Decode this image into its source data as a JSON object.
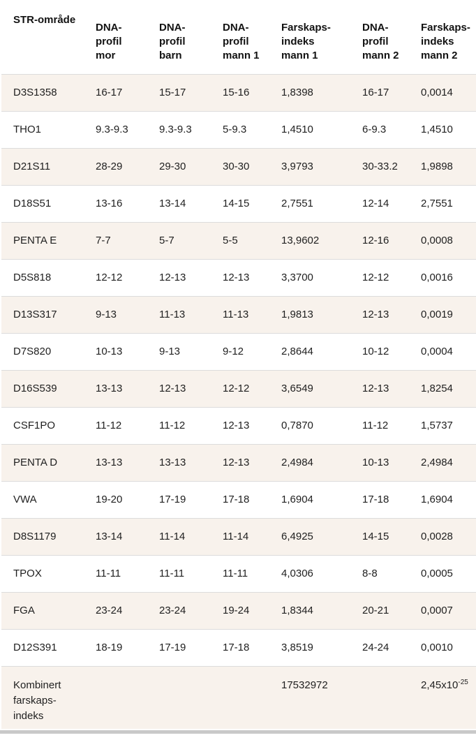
{
  "table": {
    "header_display": [
      "STR-område",
      "DNA-\nprofil\nmor",
      "DNA-\nprofil\nbarn",
      "DNA-\nprofil\nmann 1",
      "Farskaps-\nindeks\nmann 1",
      "DNA-\nprofil\nmann 2",
      "Farskaps-\nindeks\nmann 2"
    ],
    "footer": {
      "label": "Kombinert\nfarskaps-\nindeks",
      "fi_mann1": "17532972",
      "fi_mann2_mantissa": "2,45x10",
      "fi_mann2_exponent": "-25"
    }
  },
  "chart_data": {
    "type": "table",
    "title": "",
    "columns": [
      "STR-område",
      "DNA-profil mor",
      "DNA-profil barn",
      "DNA-profil mann 1",
      "Farskaps-indeks mann 1",
      "DNA-profil mann 2",
      "Farskaps-indeks mann 2"
    ],
    "rows": [
      [
        "D3S1358",
        "16-17",
        "15-17",
        "15-16",
        "1,8398",
        "16-17",
        "0,0014"
      ],
      [
        "THO1",
        "9.3-9.3",
        "9.3-9.3",
        "5-9.3",
        "1,4510",
        "6-9.3",
        "1,4510"
      ],
      [
        "D21S11",
        "28-29",
        "29-30",
        "30-30",
        "3,9793",
        "30-33.2",
        "1,9898"
      ],
      [
        "D18S51",
        "13-16",
        "13-14",
        "14-15",
        "2,7551",
        "12-14",
        "2,7551"
      ],
      [
        "PENTA E",
        "7-7",
        "5-7",
        "5-5",
        "13,9602",
        "12-16",
        "0,0008"
      ],
      [
        "D5S818",
        "12-12",
        "12-13",
        "12-13",
        "3,3700",
        "12-12",
        "0,0016"
      ],
      [
        "D13S317",
        "9-13",
        "11-13",
        "11-13",
        "1,9813",
        "12-13",
        "0,0019"
      ],
      [
        "D7S820",
        "10-13",
        "9-13",
        "9-12",
        "2,8644",
        "10-12",
        "0,0004"
      ],
      [
        "D16S539",
        "13-13",
        "12-13",
        "12-12",
        "3,6549",
        "12-13",
        "1,8254"
      ],
      [
        "CSF1PO",
        "11-12",
        "11-12",
        "12-13",
        "0,7870",
        "11-12",
        "1,5737"
      ],
      [
        "PENTA D",
        "13-13",
        "13-13",
        "12-13",
        "2,4984",
        "10-13",
        "2,4984"
      ],
      [
        "VWA",
        "19-20",
        "17-19",
        "17-18",
        "1,6904",
        "17-18",
        "1,6904"
      ],
      [
        "D8S1179",
        "13-14",
        "11-14",
        "11-14",
        "6,4925",
        "14-15",
        "0,0028"
      ],
      [
        "TPOX",
        "11-11",
        "11-11",
        "11-11",
        "4,0306",
        "8-8",
        "0,0005"
      ],
      [
        "FGA",
        "23-24",
        "23-24",
        "19-24",
        "1,8344",
        "20-21",
        "0,0007"
      ],
      [
        "D12S391",
        "18-19",
        "17-19",
        "17-18",
        "3,8519",
        "24-24",
        "0,0010"
      ]
    ],
    "footer_row": [
      "Kombinert farskaps-indeks",
      "",
      "",
      "",
      "17532972",
      "",
      "2,45x10⁻²⁵"
    ],
    "layout_hints": {
      "row_stripe_odd": true,
      "header_bold": true
    }
  },
  "colors": {
    "row_stripe": "#f8f2ec",
    "divider": "#dcdcdc",
    "scrollbar_thumb": "#c9c9c9",
    "header_text": "#121212",
    "body_text": "#1f1f1f",
    "background": "#ffffff"
  }
}
